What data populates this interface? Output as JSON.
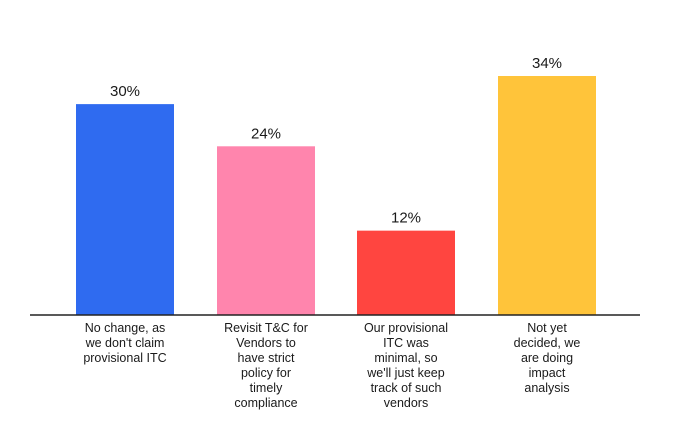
{
  "chart_data": {
    "type": "bar",
    "categories": [
      "No change, as we don't claim provisional ITC",
      "Revisit T&C for Vendors to have strict policy for timely compliance",
      "Our provisional ITC was minimal, so we'll just keep track of such vendors",
      "Not yet decided, we are doing impact analysis"
    ],
    "category_label_lines": [
      [
        "No change, as",
        "we don't claim",
        "provisional ITC"
      ],
      [
        "Revisit T&C for",
        "Vendors to",
        "have strict",
        "policy for",
        "timely",
        "compliance"
      ],
      [
        "Our provisional",
        "ITC was",
        "minimal, so",
        "we'll just keep",
        "track of such",
        "vendors"
      ],
      [
        "Not yet",
        "decided, we",
        "are doing",
        "impact",
        "analysis"
      ]
    ],
    "values": [
      30,
      24,
      12,
      34
    ],
    "value_labels": [
      "30%",
      "24%",
      "12%",
      "34%"
    ],
    "unit": "%",
    "colors": [
      "#2f6bf0",
      "#ff85ad",
      "#ff4540",
      "#ffc43a"
    ],
    "axis_color": "#222222",
    "title": "",
    "xlabel": "",
    "ylabel": "",
    "ylim": [
      0,
      34
    ],
    "grid": false,
    "legend": "none"
  }
}
